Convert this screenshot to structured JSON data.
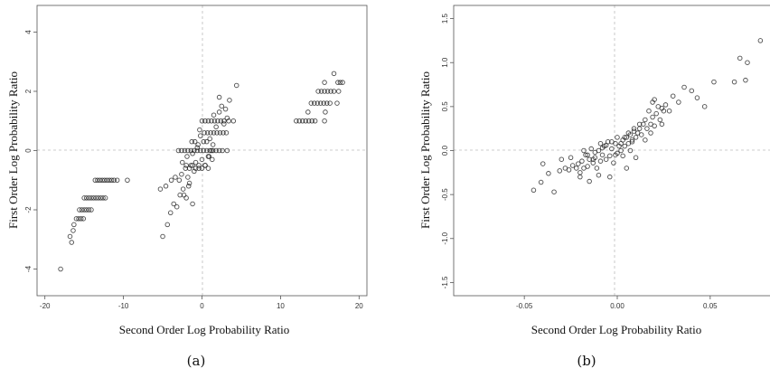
{
  "chart_data": [
    {
      "type": "scatter",
      "caption": "(a)",
      "xlabel": "Second Order Log Probability Ratio",
      "ylabel": "First Order Log Probability Ratio",
      "xlim": [
        -21,
        21
      ],
      "ylim": [
        -4.9,
        4.9
      ],
      "xticks": [
        -20,
        -10,
        0,
        10,
        20
      ],
      "yticks": [
        -4,
        -2,
        0,
        2,
        4
      ],
      "reference_lines": {
        "x": 0,
        "y": 0
      },
      "points": [
        [
          -18,
          -4
        ],
        [
          -16.6,
          -3.1
        ],
        [
          -16.8,
          -2.9
        ],
        [
          -16.4,
          -2.7
        ],
        [
          -16.3,
          -2.5
        ],
        [
          -16,
          -2.3
        ],
        [
          -15.7,
          -2.3
        ],
        [
          -15.4,
          -2.3
        ],
        [
          -15.1,
          -2.3
        ],
        [
          -15.6,
          -2
        ],
        [
          -15.3,
          -2
        ],
        [
          -15,
          -2
        ],
        [
          -14.7,
          -2
        ],
        [
          -14.4,
          -2
        ],
        [
          -14.1,
          -2
        ],
        [
          -15,
          -1.6
        ],
        [
          -14.7,
          -1.6
        ],
        [
          -14.4,
          -1.6
        ],
        [
          -14.1,
          -1.6
        ],
        [
          -13.8,
          -1.6
        ],
        [
          -13.5,
          -1.6
        ],
        [
          -13.2,
          -1.6
        ],
        [
          -12.9,
          -1.6
        ],
        [
          -12.6,
          -1.6
        ],
        [
          -12.3,
          -1.6
        ],
        [
          -13.6,
          -1
        ],
        [
          -13.3,
          -1
        ],
        [
          -13,
          -1
        ],
        [
          -12.7,
          -1
        ],
        [
          -12.4,
          -1
        ],
        [
          -12.1,
          -1
        ],
        [
          -11.8,
          -1
        ],
        [
          -11.5,
          -1
        ],
        [
          -11.2,
          -1
        ],
        [
          -10.8,
          -1
        ],
        [
          -9.5,
          -1
        ],
        [
          -5,
          -2.9
        ],
        [
          -4.4,
          -2.5
        ],
        [
          -4,
          -2.1
        ],
        [
          -3.6,
          -1.8
        ],
        [
          -3.2,
          -1.9
        ],
        [
          -2.8,
          -1.5
        ],
        [
          -2.4,
          -1.3
        ],
        [
          -2,
          -1.6
        ],
        [
          -1.6,
          -1.1
        ],
        [
          -1.2,
          -1.8
        ],
        [
          -5.3,
          -1.3
        ],
        [
          -4.6,
          -1.2
        ],
        [
          -3.9,
          -1
        ],
        [
          -3.4,
          -0.9
        ],
        [
          -2.9,
          -1
        ],
        [
          -2.6,
          -0.8
        ],
        [
          -2.1,
          -0.6
        ],
        [
          -1.8,
          -0.9
        ],
        [
          -1.4,
          -0.5
        ],
        [
          -1,
          -0.7
        ],
        [
          -0.8,
          -0.4
        ],
        [
          -0.4,
          -0.6
        ],
        [
          0,
          -0.3
        ],
        [
          0.4,
          -0.5
        ],
        [
          0.8,
          -0.2
        ],
        [
          1.2,
          0
        ],
        [
          -2.5,
          -0.4
        ],
        [
          -1.9,
          -0.2
        ],
        [
          -1.2,
          -0.1
        ],
        [
          -0.6,
          0.1
        ],
        [
          0.2,
          0.3
        ],
        [
          -3,
          0
        ],
        [
          -2.6,
          0
        ],
        [
          -2.2,
          0
        ],
        [
          -1.8,
          0
        ],
        [
          -1.4,
          0
        ],
        [
          -1,
          0
        ],
        [
          -0.6,
          0
        ],
        [
          -0.2,
          0
        ],
        [
          0.2,
          0
        ],
        [
          0.6,
          0
        ],
        [
          1,
          0
        ],
        [
          1.4,
          0
        ],
        [
          1.8,
          0
        ],
        [
          2.2,
          0
        ],
        [
          2.6,
          0
        ],
        [
          3.2,
          0
        ],
        [
          -2,
          -0.5
        ],
        [
          -1.6,
          -0.6
        ],
        [
          -1.2,
          -0.5
        ],
        [
          -0.8,
          -0.6
        ],
        [
          -0.4,
          -0.5
        ],
        [
          0,
          -0.6
        ],
        [
          0.4,
          -0.5
        ],
        [
          0.8,
          -0.6
        ],
        [
          -0.2,
          0.5
        ],
        [
          0.3,
          0.6
        ],
        [
          0.7,
          0.6
        ],
        [
          1.1,
          0.6
        ],
        [
          1.5,
          0.6
        ],
        [
          1.9,
          0.6
        ],
        [
          2.3,
          0.6
        ],
        [
          2.7,
          0.6
        ],
        [
          3.1,
          0.6
        ],
        [
          0,
          1
        ],
        [
          0.4,
          1
        ],
        [
          0.8,
          1
        ],
        [
          1.2,
          1
        ],
        [
          1.6,
          1
        ],
        [
          2,
          1
        ],
        [
          2.4,
          1
        ],
        [
          2.8,
          1
        ],
        [
          3.4,
          1
        ],
        [
          4,
          1
        ],
        [
          0.6,
          0.3
        ],
        [
          1,
          0.4
        ],
        [
          1.4,
          0.2
        ],
        [
          1.8,
          0.8
        ],
        [
          2.2,
          1.3
        ],
        [
          2.5,
          1.5
        ],
        [
          2.2,
          1.8
        ],
        [
          3,
          1.4
        ],
        [
          3.2,
          1.1
        ],
        [
          3.5,
          1.7
        ],
        [
          4.4,
          2.2
        ],
        [
          2.8,
          0.9
        ],
        [
          1.5,
          1.2
        ],
        [
          -0.9,
          0.3
        ],
        [
          -0.5,
          0.2
        ],
        [
          -1.3,
          0.3
        ],
        [
          0.9,
          -0.2
        ],
        [
          1.3,
          -0.3
        ],
        [
          -2.3,
          -1.5
        ],
        [
          -1.7,
          -1.2
        ],
        [
          -0.3,
          0.7
        ],
        [
          12,
          1
        ],
        [
          12.4,
          1
        ],
        [
          12.8,
          1
        ],
        [
          13.2,
          1
        ],
        [
          13.6,
          1
        ],
        [
          14,
          1
        ],
        [
          14.4,
          1
        ],
        [
          15.6,
          1
        ],
        [
          13.9,
          1.6
        ],
        [
          14.3,
          1.6
        ],
        [
          14.7,
          1.6
        ],
        [
          15.1,
          1.6
        ],
        [
          15.5,
          1.6
        ],
        [
          15.9,
          1.6
        ],
        [
          16.3,
          1.6
        ],
        [
          17.2,
          1.6
        ],
        [
          14.8,
          2
        ],
        [
          15.2,
          2
        ],
        [
          15.6,
          2
        ],
        [
          16,
          2
        ],
        [
          16.4,
          2
        ],
        [
          16.8,
          2
        ],
        [
          17.4,
          2
        ],
        [
          17.3,
          2.3
        ],
        [
          17.6,
          2.3
        ],
        [
          17.9,
          2.3
        ],
        [
          15.6,
          2.3
        ],
        [
          16.8,
          2.6
        ],
        [
          15.7,
          1.3
        ],
        [
          13.5,
          1.3
        ]
      ]
    },
    {
      "type": "scatter",
      "caption": "(b)",
      "xlabel": "Second Order Log Probability Ratio",
      "ylabel": "First Order Log Probability Ratio",
      "xlim": [
        -0.088,
        0.088
      ],
      "ylim": [
        -1.65,
        1.65
      ],
      "xticks": [
        -0.05,
        0.0,
        0.05
      ],
      "xticklabels": [
        "-0.05",
        "0.00",
        "0.05"
      ],
      "yticks": [
        -1.5,
        -1.0,
        -0.5,
        0.0,
        0.5,
        1.0,
        1.5
      ],
      "yticklabels": [
        "-1.5",
        "-1.0",
        "-0.5",
        "0.0",
        "0.5",
        "1.0",
        "1.5"
      ],
      "reference_lines": {
        "x": 0,
        "y": 0
      },
      "points": [
        [
          -0.045,
          -0.45
        ],
        [
          -0.041,
          -0.36
        ],
        [
          -0.04,
          -0.15
        ],
        [
          -0.037,
          -0.26
        ],
        [
          -0.034,
          -0.47
        ],
        [
          -0.031,
          -0.23
        ],
        [
          -0.028,
          -0.2
        ],
        [
          -0.026,
          -0.22
        ],
        [
          -0.025,
          -0.08
        ],
        [
          -0.024,
          -0.17
        ],
        [
          -0.022,
          -0.2
        ],
        [
          -0.021,
          -0.15
        ],
        [
          -0.02,
          -0.25
        ],
        [
          -0.019,
          -0.12
        ],
        [
          -0.018,
          -0.2
        ],
        [
          -0.017,
          -0.05
        ],
        [
          -0.016,
          -0.18
        ],
        [
          -0.015,
          -0.1
        ],
        [
          -0.014,
          0.02
        ],
        [
          -0.013,
          -0.14
        ],
        [
          -0.012,
          -0.08
        ],
        [
          -0.011,
          -0.2
        ],
        [
          -0.01,
          0.0
        ],
        [
          -0.009,
          -0.12
        ],
        [
          -0.008,
          -0.05
        ],
        [
          -0.007,
          0.05
        ],
        [
          -0.006,
          -0.1
        ],
        [
          -0.005,
          0.1
        ],
        [
          -0.004,
          -0.06
        ],
        [
          -0.003,
          0.02
        ],
        [
          -0.002,
          -0.14
        ],
        [
          -0.001,
          0.08
        ],
        [
          0.0,
          -0.03
        ],
        [
          0.001,
          0.05
        ],
        [
          0.002,
          0.0
        ],
        [
          0.003,
          0.12
        ],
        [
          0.004,
          0.05
        ],
        [
          0.005,
          0.15
        ],
        [
          0.006,
          0.08
        ],
        [
          0.007,
          0.18
        ],
        [
          0.008,
          0.1
        ],
        [
          0.009,
          0.22
        ],
        [
          0.01,
          0.15
        ],
        [
          0.011,
          0.2
        ],
        [
          0.012,
          0.25
        ],
        [
          0.013,
          0.18
        ],
        [
          0.014,
          0.3
        ],
        [
          0.015,
          0.35
        ],
        [
          0.016,
          0.25
        ],
        [
          0.017,
          0.45
        ],
        [
          0.018,
          0.3
        ],
        [
          0.019,
          0.38
        ],
        [
          0.02,
          0.28
        ],
        [
          0.021,
          0.42
        ],
        [
          0.022,
          0.5
        ],
        [
          0.023,
          0.35
        ],
        [
          0.024,
          0.48
        ],
        [
          0.025,
          0.45
        ],
        [
          0.026,
          0.52
        ],
        [
          0.028,
          0.45
        ],
        [
          0.03,
          0.62
        ],
        [
          0.033,
          0.55
        ],
        [
          0.036,
          0.72
        ],
        [
          0.04,
          0.68
        ],
        [
          0.043,
          0.6
        ],
        [
          0.047,
          0.5
        ],
        [
          0.052,
          0.78
        ],
        [
          0.063,
          0.78
        ],
        [
          0.066,
          1.05
        ],
        [
          0.069,
          0.8
        ],
        [
          0.07,
          1.0
        ],
        [
          0.077,
          1.25
        ],
        [
          -0.02,
          -0.3
        ],
        [
          -0.015,
          -0.35
        ],
        [
          -0.01,
          -0.28
        ],
        [
          -0.004,
          -0.3
        ],
        [
          0.005,
          -0.2
        ],
        [
          0.01,
          -0.08
        ],
        [
          -0.03,
          -0.1
        ],
        [
          -0.012,
          -0.02
        ],
        [
          -0.008,
          0.03
        ],
        [
          -0.006,
          0.06
        ],
        [
          -0.003,
          0.1
        ],
        [
          0.0,
          0.15
        ],
        [
          0.003,
          -0.06
        ],
        [
          0.006,
          0.2
        ],
        [
          0.009,
          0.25
        ],
        [
          -0.018,
          0.0
        ],
        [
          -0.016,
          -0.05
        ],
        [
          -0.013,
          -0.1
        ],
        [
          -0.009,
          0.08
        ],
        [
          -0.001,
          -0.05
        ],
        [
          0.002,
          0.08
        ],
        [
          0.004,
          0.15
        ],
        [
          0.007,
          0.0
        ],
        [
          0.008,
          0.12
        ],
        [
          0.012,
          0.3
        ],
        [
          0.015,
          0.12
        ],
        [
          0.018,
          0.2
        ],
        [
          0.02,
          0.58
        ],
        [
          0.019,
          0.55
        ],
        [
          0.024,
          0.3
        ]
      ]
    }
  ]
}
